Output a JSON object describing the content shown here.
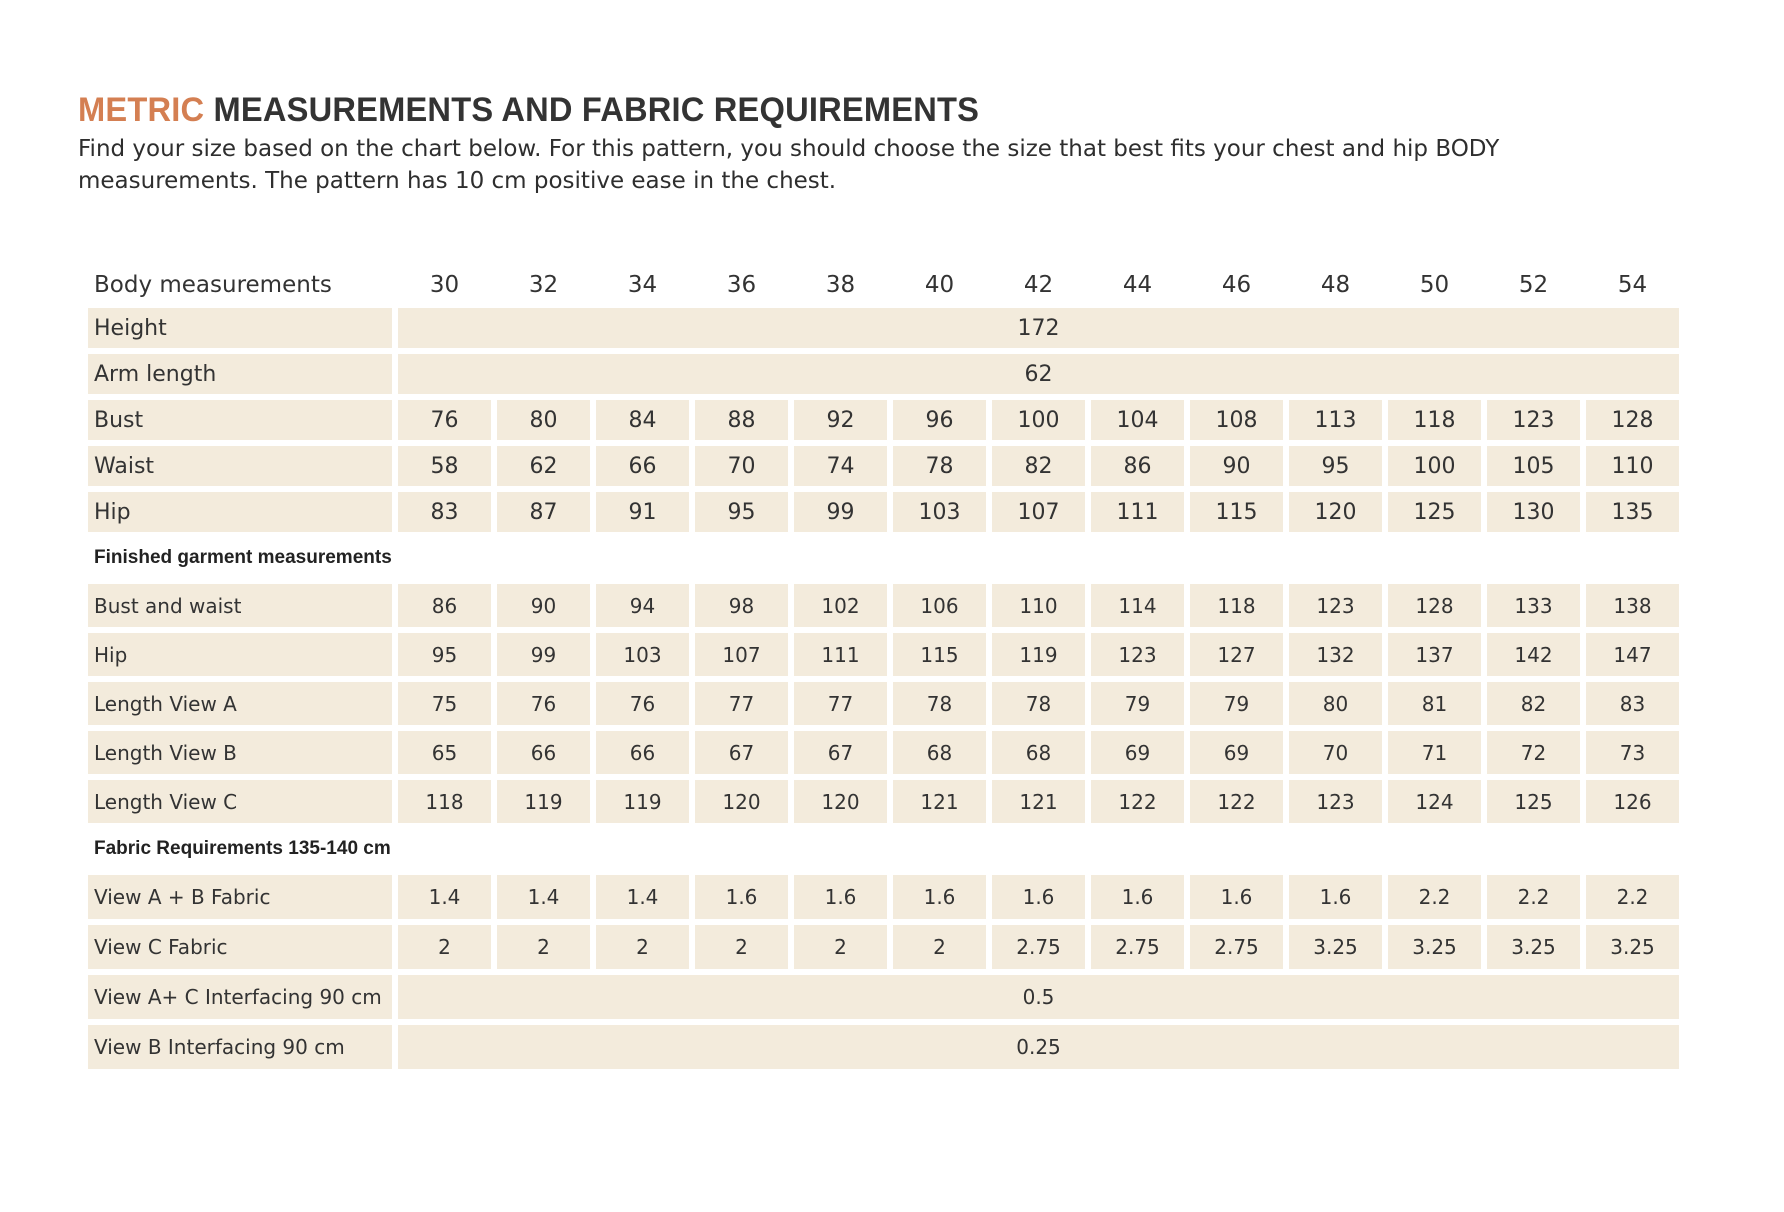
{
  "title": {
    "accent": "METRIC",
    "rest": " MEASUREMENTS AND FABRIC REQUIREMENTS"
  },
  "intro": "Find your size based on the chart below. For this pattern, you should choose the size that best fits your chest and hip BODY measurements. The pattern has 10 cm positive ease in the chest.",
  "colors": {
    "accent": "#d47f52",
    "cell_background": "#f3ebdc",
    "text": "#333333"
  },
  "table": {
    "header_label": "Body measurements",
    "sizes": [
      "30",
      "32",
      "34",
      "36",
      "38",
      "40",
      "42",
      "44",
      "46",
      "48",
      "50",
      "52",
      "54"
    ],
    "body": {
      "height": {
        "label": "Height",
        "value": "172"
      },
      "arm_length": {
        "label": "Arm length",
        "value": "62"
      },
      "bust": {
        "label": "Bust",
        "values": [
          "76",
          "80",
          "84",
          "88",
          "92",
          "96",
          "100",
          "104",
          "108",
          "113",
          "118",
          "123",
          "128"
        ]
      },
      "waist": {
        "label": "Waist",
        "values": [
          "58",
          "62",
          "66",
          "70",
          "74",
          "78",
          "82",
          "86",
          "90",
          "95",
          "100",
          "105",
          "110"
        ]
      },
      "hip": {
        "label": "Hip",
        "values": [
          "83",
          "87",
          "91",
          "95",
          "99",
          "103",
          "107",
          "111",
          "115",
          "120",
          "125",
          "130",
          "135"
        ]
      }
    },
    "finished_heading": "Finished garment measurements",
    "finished": {
      "bust_waist": {
        "label": "Bust and waist",
        "values": [
          "86",
          "90",
          "94",
          "98",
          "102",
          "106",
          "110",
          "114",
          "118",
          "123",
          "128",
          "133",
          "138"
        ]
      },
      "hip": {
        "label": "Hip",
        "values": [
          "95",
          "99",
          "103",
          "107",
          "111",
          "115",
          "119",
          "123",
          "127",
          "132",
          "137",
          "142",
          "147"
        ]
      },
      "length_a": {
        "label": "Length View A",
        "values": [
          "75",
          "76",
          "76",
          "77",
          "77",
          "78",
          "78",
          "79",
          "79",
          "80",
          "81",
          "82",
          "83"
        ]
      },
      "length_b": {
        "label": "Length View B",
        "values": [
          "65",
          "66",
          "66",
          "67",
          "67",
          "68",
          "68",
          "69",
          "69",
          "70",
          "71",
          "72",
          "73"
        ]
      },
      "length_c": {
        "label": "Length View C",
        "values": [
          "118",
          "119",
          "119",
          "120",
          "120",
          "121",
          "121",
          "122",
          "122",
          "123",
          "124",
          "125",
          "126"
        ]
      }
    },
    "fabric_heading": "Fabric Requirements  135-140 cm",
    "fabric": {
      "view_ab": {
        "label": "View A + B Fabric",
        "values": [
          "1.4",
          "1.4",
          "1.4",
          "1.6",
          "1.6",
          "1.6",
          "1.6",
          "1.6",
          "1.6",
          "1.6",
          "2.2",
          "2.2",
          "2.2"
        ]
      },
      "view_c": {
        "label": "View C Fabric",
        "values": [
          "2",
          "2",
          "2",
          "2",
          "2",
          "2",
          "2.75",
          "2.75",
          "2.75",
          "3.25",
          "3.25",
          "3.25",
          "3.25"
        ]
      },
      "interfacing_ac": {
        "label": "View A+ C Interfacing 90 cm",
        "value": "0.5"
      },
      "interfacing_b": {
        "label": "View B Interfacing 90 cm",
        "value": "0.25"
      }
    }
  }
}
